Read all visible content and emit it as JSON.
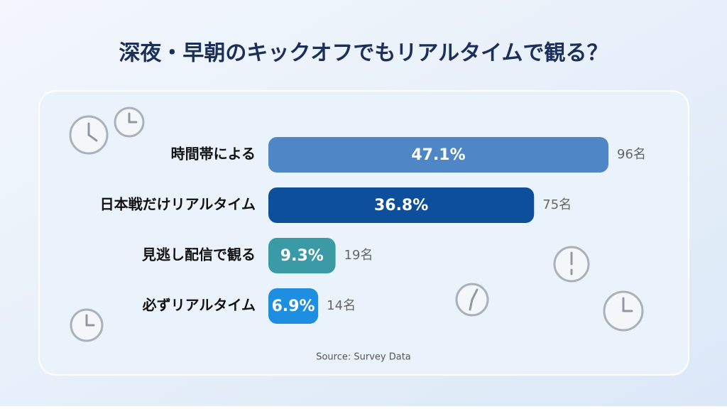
{
  "chart_data": {
    "type": "bar",
    "orientation": "horizontal",
    "title": "深夜・早朝のキックオフでもリアルタイムで観る？",
    "categories": [
      "時間帯による",
      "日本戦だけリアルタイム",
      "見逃し配信で観る",
      "必ずリアルタイム"
    ],
    "values": [
      47.1,
      36.8,
      9.3,
      6.9
    ],
    "value_labels": [
      "47.1%",
      "36.8%",
      "9.3%",
      "6.9%"
    ],
    "count_labels": [
      "96名",
      "75名",
      "19名",
      "14名"
    ],
    "colors": [
      "#4f86c6",
      "#0d4f9a",
      "#3a9aa6",
      "#1e8fe0"
    ],
    "source": "Source: Survey Data"
  }
}
